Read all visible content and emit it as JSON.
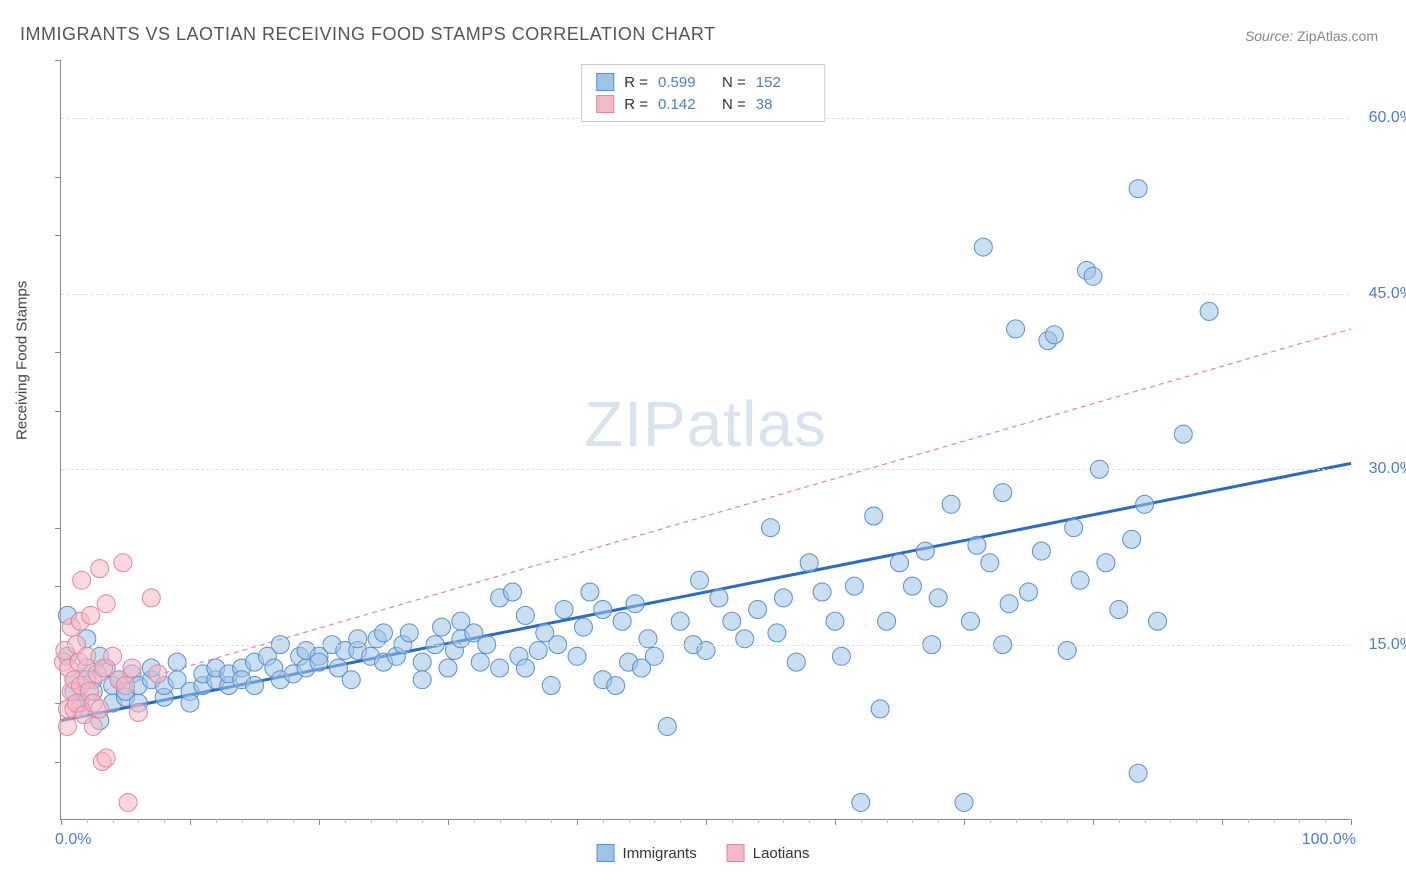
{
  "title": "IMMIGRANTS VS LAOTIAN RECEIVING FOOD STAMPS CORRELATION CHART",
  "source_label": "Source:",
  "source_value": "ZipAtlas.com",
  "y_axis_label": "Receiving Food Stamps",
  "watermark_zip": "ZIP",
  "watermark_atlas": "atlas",
  "chart": {
    "type": "scatter",
    "xlim": [
      0,
      100
    ],
    "ylim": [
      0,
      65
    ],
    "x_ticks_major": [
      0,
      10,
      20,
      30,
      40,
      50,
      60,
      70,
      80,
      90,
      100
    ],
    "x_end_labels": {
      "min": "0.0%",
      "max": "100.0%"
    },
    "y_ticks": [
      {
        "v": 15,
        "label": "15.0%"
      },
      {
        "v": 30,
        "label": "30.0%"
      },
      {
        "v": 45,
        "label": "45.0%"
      },
      {
        "v": 60,
        "label": "60.0%"
      }
    ],
    "y_minor_ticks": [
      5,
      10,
      20,
      25,
      35,
      40,
      50,
      55,
      65
    ],
    "background_color": "#ffffff",
    "grid_color": "#dddddd",
    "axis_color": "#888888",
    "marker_radius": 9,
    "marker_stroke_width": 1,
    "series": [
      {
        "name": "Immigrants",
        "fill": "#9ec3e6",
        "stroke": "#5a8fcf",
        "opacity": 0.55,
        "R": "0.599",
        "N": "152",
        "regression": {
          "x1": 0,
          "y1": 8.5,
          "x2": 100,
          "y2": 30.5,
          "color": "#2d6bbf",
          "width": 3,
          "dash": "none"
        },
        "points": [
          [
            0.5,
            17.5
          ],
          [
            0.5,
            14
          ],
          [
            1,
            12
          ],
          [
            1,
            11
          ],
          [
            1.5,
            10
          ],
          [
            1.5,
            9.5
          ],
          [
            2,
            13
          ],
          [
            2,
            15.5
          ],
          [
            2.5,
            12
          ],
          [
            2.5,
            11
          ],
          [
            3,
            8.5
          ],
          [
            3,
            14
          ],
          [
            3.5,
            13
          ],
          [
            4,
            10
          ],
          [
            4,
            11.5
          ],
          [
            4.5,
            12
          ],
          [
            5,
            10.5
          ],
          [
            5,
            11
          ],
          [
            5.5,
            12.5
          ],
          [
            6,
            10
          ],
          [
            6,
            11.5
          ],
          [
            7,
            12
          ],
          [
            7,
            13
          ],
          [
            8,
            10.5
          ],
          [
            8,
            11.5
          ],
          [
            9,
            12
          ],
          [
            9,
            13.5
          ],
          [
            10,
            11
          ],
          [
            10,
            10
          ],
          [
            11,
            11.5
          ],
          [
            11,
            12.5
          ],
          [
            12,
            12
          ],
          [
            12,
            13
          ],
          [
            13,
            11.5
          ],
          [
            13,
            12.5
          ],
          [
            14,
            13
          ],
          [
            14,
            12
          ],
          [
            15,
            11.5
          ],
          [
            15,
            13.5
          ],
          [
            16,
            14
          ],
          [
            16.5,
            13
          ],
          [
            17,
            12
          ],
          [
            17,
            15
          ],
          [
            18,
            12.5
          ],
          [
            18.5,
            14
          ],
          [
            19,
            13
          ],
          [
            19,
            14.5
          ],
          [
            20,
            14
          ],
          [
            20,
            13.5
          ],
          [
            21,
            15
          ],
          [
            21.5,
            13
          ],
          [
            22,
            14.5
          ],
          [
            22.5,
            12
          ],
          [
            23,
            14.5
          ],
          [
            23,
            15.5
          ],
          [
            24,
            14
          ],
          [
            24.5,
            15.5
          ],
          [
            25,
            13.5
          ],
          [
            25,
            16
          ],
          [
            26,
            14
          ],
          [
            26.5,
            15
          ],
          [
            27,
            16
          ],
          [
            28,
            13.5
          ],
          [
            28,
            12
          ],
          [
            29,
            15
          ],
          [
            29.5,
            16.5
          ],
          [
            30,
            13
          ],
          [
            30.5,
            14.5
          ],
          [
            31,
            17
          ],
          [
            31,
            15.5
          ],
          [
            32,
            16
          ],
          [
            32.5,
            13.5
          ],
          [
            33,
            15
          ],
          [
            34,
            19
          ],
          [
            34,
            13
          ],
          [
            35,
            19.5
          ],
          [
            35.5,
            14
          ],
          [
            36,
            17.5
          ],
          [
            36,
            13
          ],
          [
            37,
            14.5
          ],
          [
            37.5,
            16
          ],
          [
            38,
            11.5
          ],
          [
            38.5,
            15
          ],
          [
            39,
            18
          ],
          [
            40,
            14
          ],
          [
            40.5,
            16.5
          ],
          [
            41,
            19.5
          ],
          [
            42,
            18
          ],
          [
            42,
            12
          ],
          [
            43,
            11.5
          ],
          [
            43.5,
            17
          ],
          [
            44,
            13.5
          ],
          [
            44.5,
            18.5
          ],
          [
            45,
            13
          ],
          [
            45.5,
            15.5
          ],
          [
            46,
            14
          ],
          [
            47,
            8
          ],
          [
            48,
            17
          ],
          [
            49,
            15
          ],
          [
            49.5,
            20.5
          ],
          [
            50,
            14.5
          ],
          [
            51,
            19
          ],
          [
            52,
            17
          ],
          [
            53,
            15.5
          ],
          [
            54,
            18
          ],
          [
            55,
            25
          ],
          [
            55.5,
            16
          ],
          [
            56,
            19
          ],
          [
            57,
            13.5
          ],
          [
            58,
            22
          ],
          [
            59,
            19.5
          ],
          [
            60,
            17
          ],
          [
            60.5,
            14
          ],
          [
            61.5,
            20
          ],
          [
            62,
            1.5
          ],
          [
            63,
            26
          ],
          [
            63.5,
            9.5
          ],
          [
            64,
            17
          ],
          [
            65,
            22
          ],
          [
            66,
            20
          ],
          [
            67,
            23
          ],
          [
            67.5,
            15
          ],
          [
            68,
            19
          ],
          [
            69,
            27
          ],
          [
            70,
            1.5
          ],
          [
            70.5,
            17
          ],
          [
            71,
            23.5
          ],
          [
            71.5,
            49
          ],
          [
            72,
            22
          ],
          [
            73,
            28
          ],
          [
            73,
            15
          ],
          [
            73.5,
            18.5
          ],
          [
            74,
            42
          ],
          [
            75,
            19.5
          ],
          [
            76,
            23
          ],
          [
            76.5,
            41
          ],
          [
            77,
            41.5
          ],
          [
            78,
            14.5
          ],
          [
            78.5,
            25
          ],
          [
            79,
            20.5
          ],
          [
            79.5,
            47
          ],
          [
            80,
            46.5
          ],
          [
            80.5,
            30
          ],
          [
            81,
            22
          ],
          [
            82,
            18
          ],
          [
            83,
            24
          ],
          [
            83.5,
            54
          ],
          [
            84,
            27
          ],
          [
            85,
            17
          ],
          [
            87,
            33
          ],
          [
            89,
            43.5
          ],
          [
            83.5,
            4
          ]
        ]
      },
      {
        "name": "Laotians",
        "fill": "#f4b8c7",
        "stroke": "#e386a0",
        "opacity": 0.55,
        "R": "0.142",
        "N": "38",
        "regression": {
          "x1": 0,
          "y1": 10,
          "x2": 100,
          "y2": 42,
          "color": "#e386a0",
          "width": 1.2,
          "dash": "5 4"
        },
        "points": [
          [
            0.2,
            13.5
          ],
          [
            0.3,
            14.5
          ],
          [
            0.5,
            8
          ],
          [
            0.5,
            9.5
          ],
          [
            0.6,
            13
          ],
          [
            0.8,
            11
          ],
          [
            0.8,
            16.5
          ],
          [
            1,
            9.5
          ],
          [
            1,
            12
          ],
          [
            1.2,
            10
          ],
          [
            1.2,
            15
          ],
          [
            1.4,
            13.5
          ],
          [
            1.5,
            11.5
          ],
          [
            1.5,
            17
          ],
          [
            1.6,
            20.5
          ],
          [
            1.8,
            9
          ],
          [
            2,
            12
          ],
          [
            2,
            14
          ],
          [
            2.2,
            11
          ],
          [
            2.3,
            17.5
          ],
          [
            2.5,
            10
          ],
          [
            2.5,
            8
          ],
          [
            2.8,
            12.5
          ],
          [
            3,
            21.5
          ],
          [
            3,
            9.5
          ],
          [
            3.2,
            5
          ],
          [
            3.3,
            13
          ],
          [
            3.5,
            18.5
          ],
          [
            3.5,
            5.3
          ],
          [
            4,
            14
          ],
          [
            4.5,
            12
          ],
          [
            4.8,
            22
          ],
          [
            5,
            11.5
          ],
          [
            5.5,
            13
          ],
          [
            6,
            9.2
          ],
          [
            7,
            19
          ],
          [
            7.5,
            12.5
          ],
          [
            5.2,
            1.5
          ]
        ]
      }
    ]
  },
  "legend_top": {
    "r_label": "R =",
    "n_label": "N ="
  },
  "legend_bottom": {
    "immigrants": "Immigrants",
    "laotians": "Laotians"
  }
}
